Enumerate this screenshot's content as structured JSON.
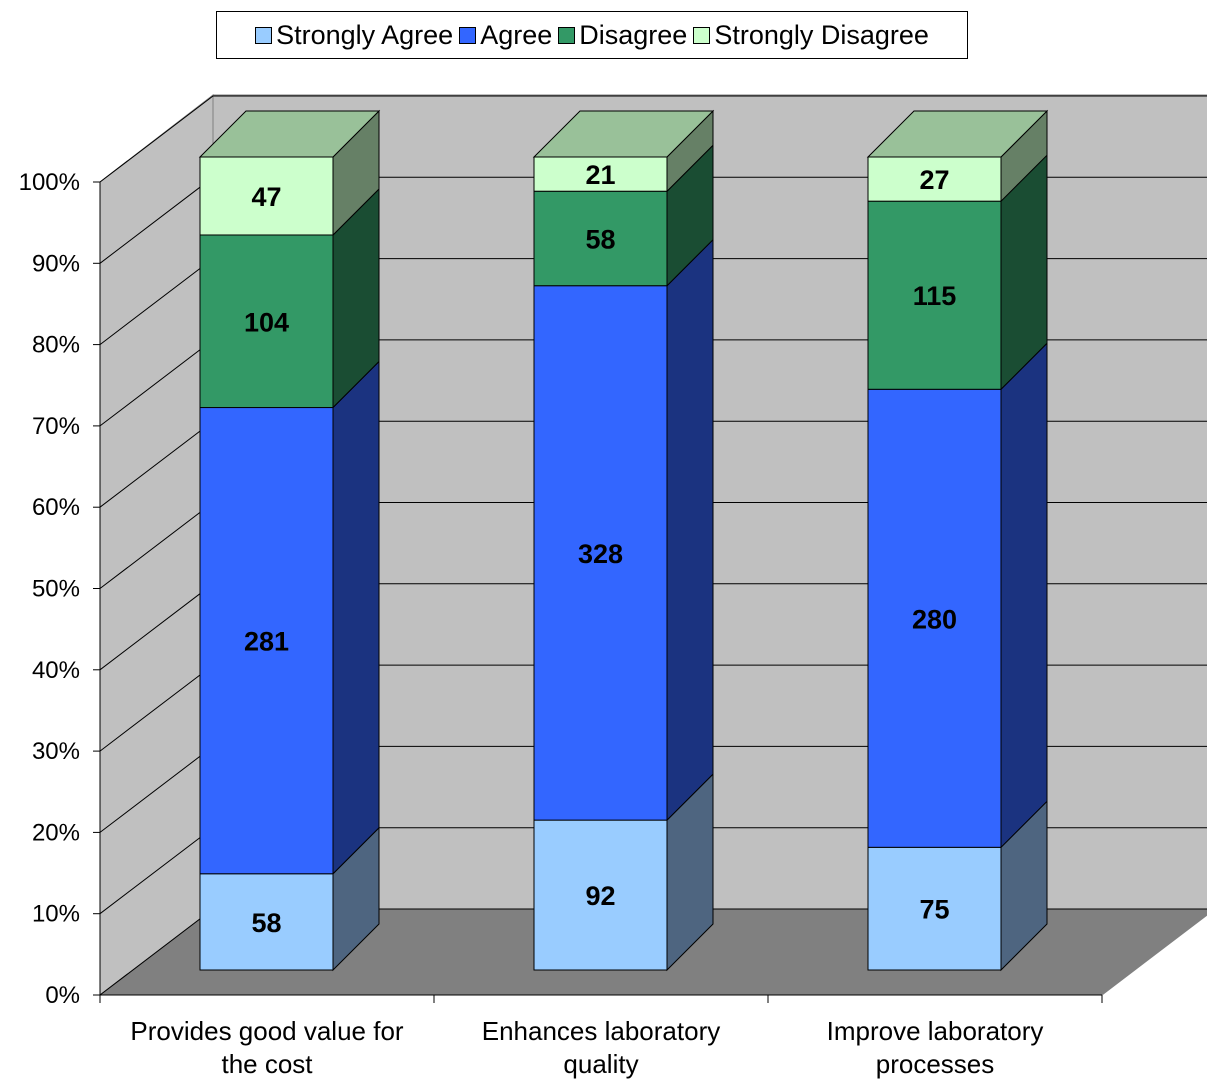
{
  "chart_data": {
    "type": "bar",
    "stacked": true,
    "normalized": true,
    "style": "3d-column",
    "categories": [
      [
        "Provides good value for",
        "the cost"
      ],
      [
        "Enhances laboratory",
        "quality"
      ],
      [
        "Improve laboratory",
        "processes"
      ]
    ],
    "series": [
      {
        "name": "Strongly Agree",
        "values": [
          58,
          92,
          75
        ],
        "color": "#99CCFF",
        "side_color": "#4E6580",
        "top_color": "#C0DCF5"
      },
      {
        "name": "Agree",
        "values": [
          281,
          328,
          280
        ],
        "color": "#3366FF",
        "side_color": "#1B3380",
        "top_color": "#6688FF"
      },
      {
        "name": "Disagree",
        "values": [
          104,
          58,
          115
        ],
        "color": "#339966",
        "side_color": "#1A4D33",
        "top_color": "#66B388"
      },
      {
        "name": "Strongly Disagree",
        "values": [
          47,
          21,
          27
        ],
        "color": "#CCFFCC",
        "side_color": "#668066",
        "top_color": "#99C199"
      }
    ],
    "y_ticks": [
      "0%",
      "10%",
      "20%",
      "30%",
      "40%",
      "50%",
      "60%",
      "70%",
      "80%",
      "90%",
      "100%"
    ],
    "ylim": [
      0,
      100
    ],
    "grid": true,
    "legend_position": "top",
    "colors": {
      "back_wall": "#C0C0C0",
      "side_wall": "#C0C0C0",
      "floor": "#808080",
      "gridline": "#000000"
    }
  }
}
